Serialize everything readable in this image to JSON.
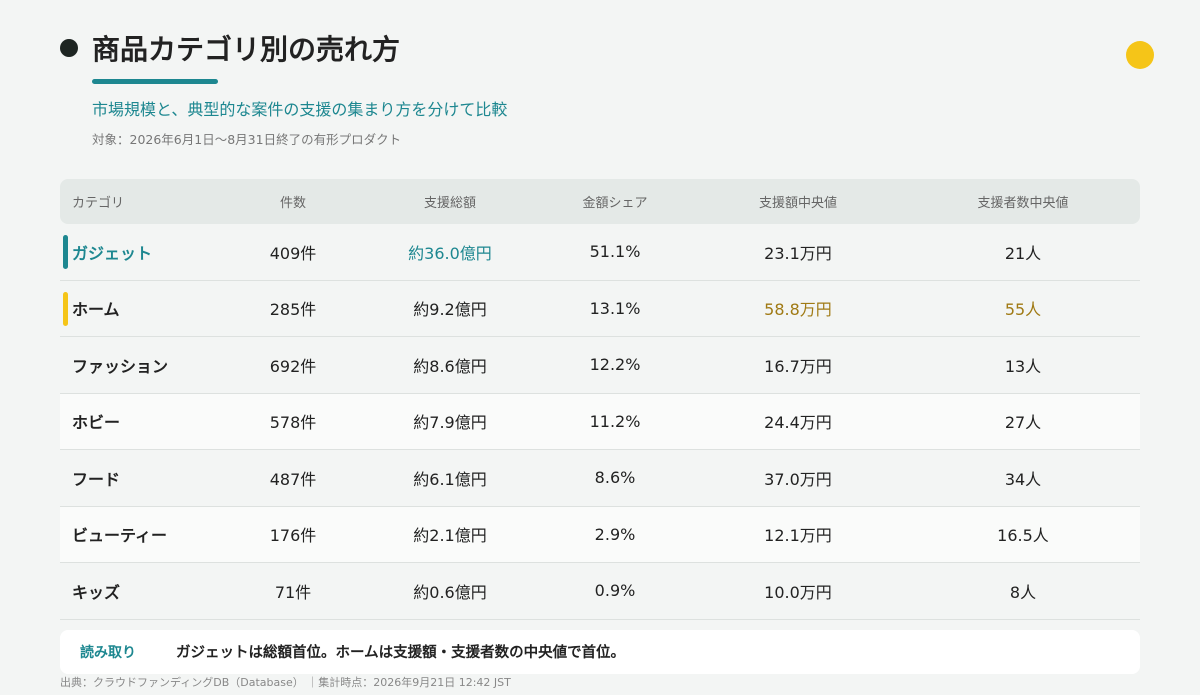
{
  "header": {
    "title": "商品カテゴリ別の売れ方",
    "subtitle": "市場規模と、典型的な案件の支援の集まり方を分けて比較",
    "note": "対象：2026年6月1日〜8月31日終了の有形プロダクト"
  },
  "table": {
    "columns": [
      "カテゴリ",
      "件数",
      "支援総額",
      "金額シェア",
      "支援額中央値",
      "支援者数中央値"
    ],
    "rows": [
      [
        "ガジェット",
        "409件",
        "約36.0億円",
        "51.1%",
        "23.1万円",
        "21人"
      ],
      [
        "ホーム",
        "285件",
        "約9.2億円",
        "13.1%",
        "58.8万円",
        "55人"
      ],
      [
        "ファッション",
        "692件",
        "約8.6億円",
        "12.2%",
        "16.7万円",
        "13人"
      ],
      [
        "ホビー",
        "578件",
        "約7.9億円",
        "11.2%",
        "24.4万円",
        "27人"
      ],
      [
        "フード",
        "487件",
        "約6.1億円",
        "8.6%",
        "37.0万円",
        "34人"
      ],
      [
        "ビューティー",
        "176件",
        "約2.1億円",
        "2.9%",
        "12.1万円",
        "16.5人"
      ],
      [
        "キッズ",
        "71件",
        "約0.6億円",
        "0.9%",
        "10.0万円",
        "8人"
      ]
    ]
  },
  "takeaway": {
    "label": "読み取り",
    "text": "ガジェットは総額首位。ホームは支援額・支援者数の中央値で首位。"
  },
  "footer": {
    "source": "出典：クラウドファンディングDB（Database） ｜集計時点：2026年9月21日 12:42 JST"
  }
}
